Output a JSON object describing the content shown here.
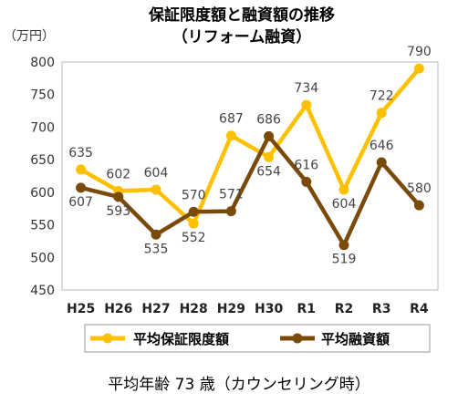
{
  "chart_data": {
    "type": "line",
    "title": "保証限度額と融資額の推移",
    "subtitle": "（リフォーム融資）",
    "ylabel": "（万円）",
    "ylim": [
      450,
      800
    ],
    "yticks": [
      "450",
      "500",
      "550",
      "600",
      "650",
      "700",
      "750",
      "800"
    ],
    "categories": [
      "H25",
      "H26",
      "H27",
      "H28",
      "H29",
      "H30",
      "R1",
      "R2",
      "R3",
      "R4"
    ],
    "series": [
      {
        "name": "平均保証限度額",
        "color": "#FFC000",
        "values": [
          635,
          602,
          604,
          552,
          687,
          654,
          734,
          604,
          722,
          790
        ],
        "labels": [
          "635",
          "602",
          "604",
          "552",
          "687",
          "654",
          "734",
          "604",
          "722",
          "790"
        ]
      },
      {
        "name": "平均融資額",
        "color": "#7A4A0A",
        "values": [
          607,
          593,
          535,
          570,
          571,
          686,
          616,
          519,
          646,
          580
        ],
        "labels": [
          "607",
          "593",
          "535",
          "570",
          "571",
          "686",
          "616",
          "519",
          "646",
          "580"
        ]
      }
    ],
    "legend": "bottom",
    "grid": false
  },
  "footer": "平均年齢 73 歳（カウンセリング時）"
}
